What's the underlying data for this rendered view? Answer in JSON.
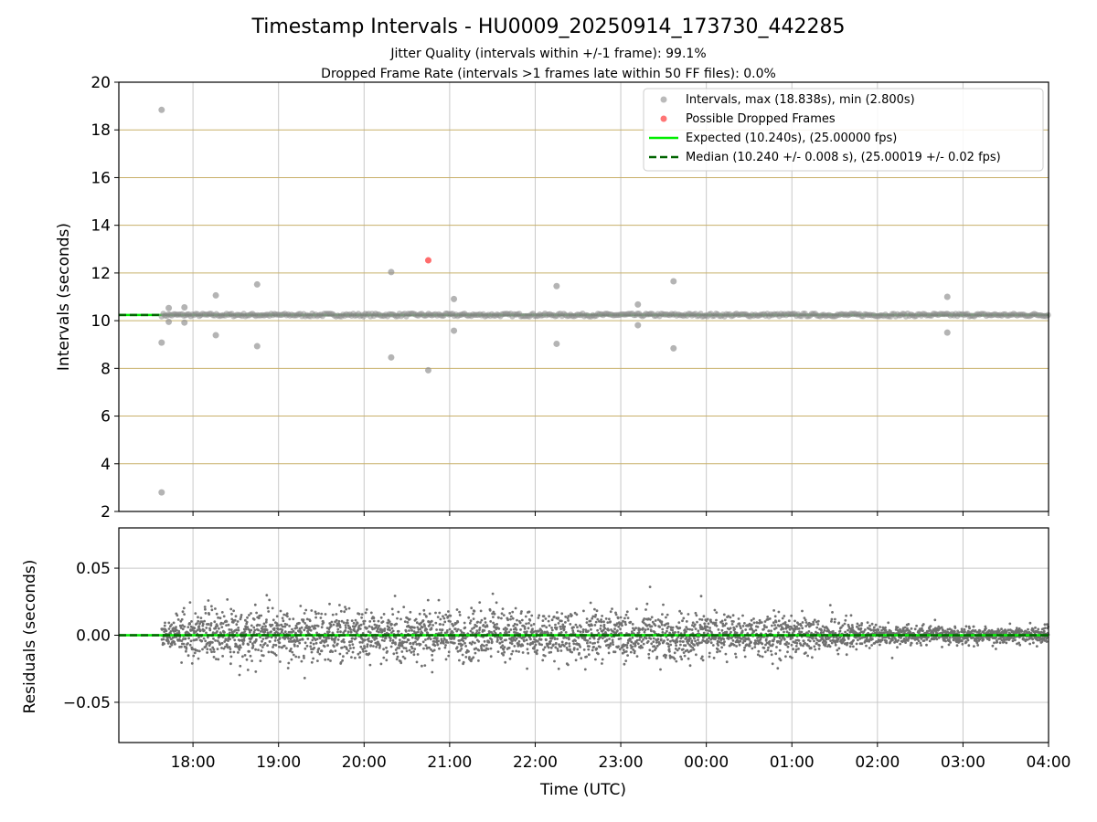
{
  "chart_data": [
    {
      "type": "scatter",
      "title": "Timestamp Intervals - HU0009_20250914_173730_442285",
      "subtitle_lines": [
        "Jitter Quality (intervals within +/-1 frame): 99.1%",
        "Dropped Frame Rate (intervals >1 frames late within 50 FF files): 0.0%"
      ],
      "ylabel": "Intervals (seconds)",
      "ylim": [
        2,
        20
      ],
      "yticks": [
        2,
        4,
        6,
        8,
        10,
        12,
        14,
        16,
        18,
        20
      ],
      "xlim": [
        "2025-09-14T17:08",
        "2025-09-15T04:00"
      ],
      "xticks": [
        "18:00",
        "19:00",
        "20:00",
        "21:00",
        "22:00",
        "23:00",
        "00:00",
        "01:00",
        "02:00",
        "03:00",
        "04:00"
      ],
      "grid": true,
      "legend_placement": "top-right",
      "colors": {
        "intervals": "#8c8c8c",
        "dropped": "#ff3b3b",
        "expected": "#00ee00",
        "median": "#006400",
        "hgrid": "#c8b06a",
        "vgrid": "#c8c8c8"
      },
      "series": [
        {
          "name": "Intervals, max (18.838s), min (2.800s)",
          "kind": "scatter",
          "baseline": 10.24,
          "baseline_range": [
            "17:38",
            "04:00"
          ],
          "outliers": [
            {
              "x": "17:38",
              "y": 18.84
            },
            {
              "x": "17:38",
              "y": 2.8
            },
            {
              "x": "17:38",
              "y": 9.08
            },
            {
              "x": "17:43",
              "y": 10.53
            },
            {
              "x": "17:43",
              "y": 9.95
            },
            {
              "x": "17:54",
              "y": 10.56
            },
            {
              "x": "17:54",
              "y": 9.92
            },
            {
              "x": "18:16",
              "y": 11.06
            },
            {
              "x": "18:16",
              "y": 9.39
            },
            {
              "x": "18:45",
              "y": 11.52
            },
            {
              "x": "18:45",
              "y": 8.93
            },
            {
              "x": "20:19",
              "y": 12.04
            },
            {
              "x": "20:19",
              "y": 8.46
            },
            {
              "x": "20:45",
              "y": 7.92
            },
            {
              "x": "21:03",
              "y": 10.91
            },
            {
              "x": "21:03",
              "y": 9.58
            },
            {
              "x": "22:15",
              "y": 11.45
            },
            {
              "x": "22:15",
              "y": 9.03
            },
            {
              "x": "23:12",
              "y": 10.68
            },
            {
              "x": "23:12",
              "y": 9.81
            },
            {
              "x": "23:37",
              "y": 11.65
            },
            {
              "x": "23:37",
              "y": 8.84
            },
            {
              "x": "02:49",
              "y": 11.0
            },
            {
              "x": "02:49",
              "y": 9.5
            }
          ]
        },
        {
          "name": "Possible Dropped Frames",
          "kind": "scatter",
          "points": [
            {
              "x": "20:45",
              "y": 12.53
            }
          ]
        },
        {
          "name": "Expected (10.240s), (25.00000 fps)",
          "kind": "hline",
          "y": 10.24
        },
        {
          "name": "Median (10.240 +/- 0.008 s), (25.00019 +/- 0.02 fps)",
          "kind": "hline-dashed",
          "y": 10.24
        }
      ]
    },
    {
      "type": "scatter",
      "ylabel": "Residuals (seconds)",
      "xlabel": "Time (UTC)",
      "ylim": [
        -0.08,
        0.08
      ],
      "yticks": [
        -0.05,
        0.0,
        0.05
      ],
      "ytick_labels": [
        "−0.05",
        "0.00",
        "0.05"
      ],
      "xlim": [
        "2025-09-14T17:08",
        "2025-09-15T04:00"
      ],
      "xticks": [
        "18:00",
        "19:00",
        "20:00",
        "21:00",
        "22:00",
        "23:00",
        "00:00",
        "01:00",
        "02:00",
        "03:00",
        "04:00"
      ],
      "grid": true,
      "residual_range": [
        "17:38",
        "04:00"
      ],
      "residual_spread_profile": [
        {
          "x": "17:38",
          "std": 0.004
        },
        {
          "x": "18:00",
          "std": 0.009
        },
        {
          "x": "19:00",
          "std": 0.01
        },
        {
          "x": "20:00",
          "std": 0.009
        },
        {
          "x": "21:00",
          "std": 0.009
        },
        {
          "x": "22:00",
          "std": 0.009
        },
        {
          "x": "23:00",
          "std": 0.009
        },
        {
          "x": "00:00",
          "std": 0.008
        },
        {
          "x": "01:00",
          "std": 0.008
        },
        {
          "x": "02:00",
          "std": 0.004
        },
        {
          "x": "03:00",
          "std": 0.003
        },
        {
          "x": "04:00",
          "std": 0.003
        }
      ],
      "zero_lines": [
        0.0
      ]
    }
  ]
}
